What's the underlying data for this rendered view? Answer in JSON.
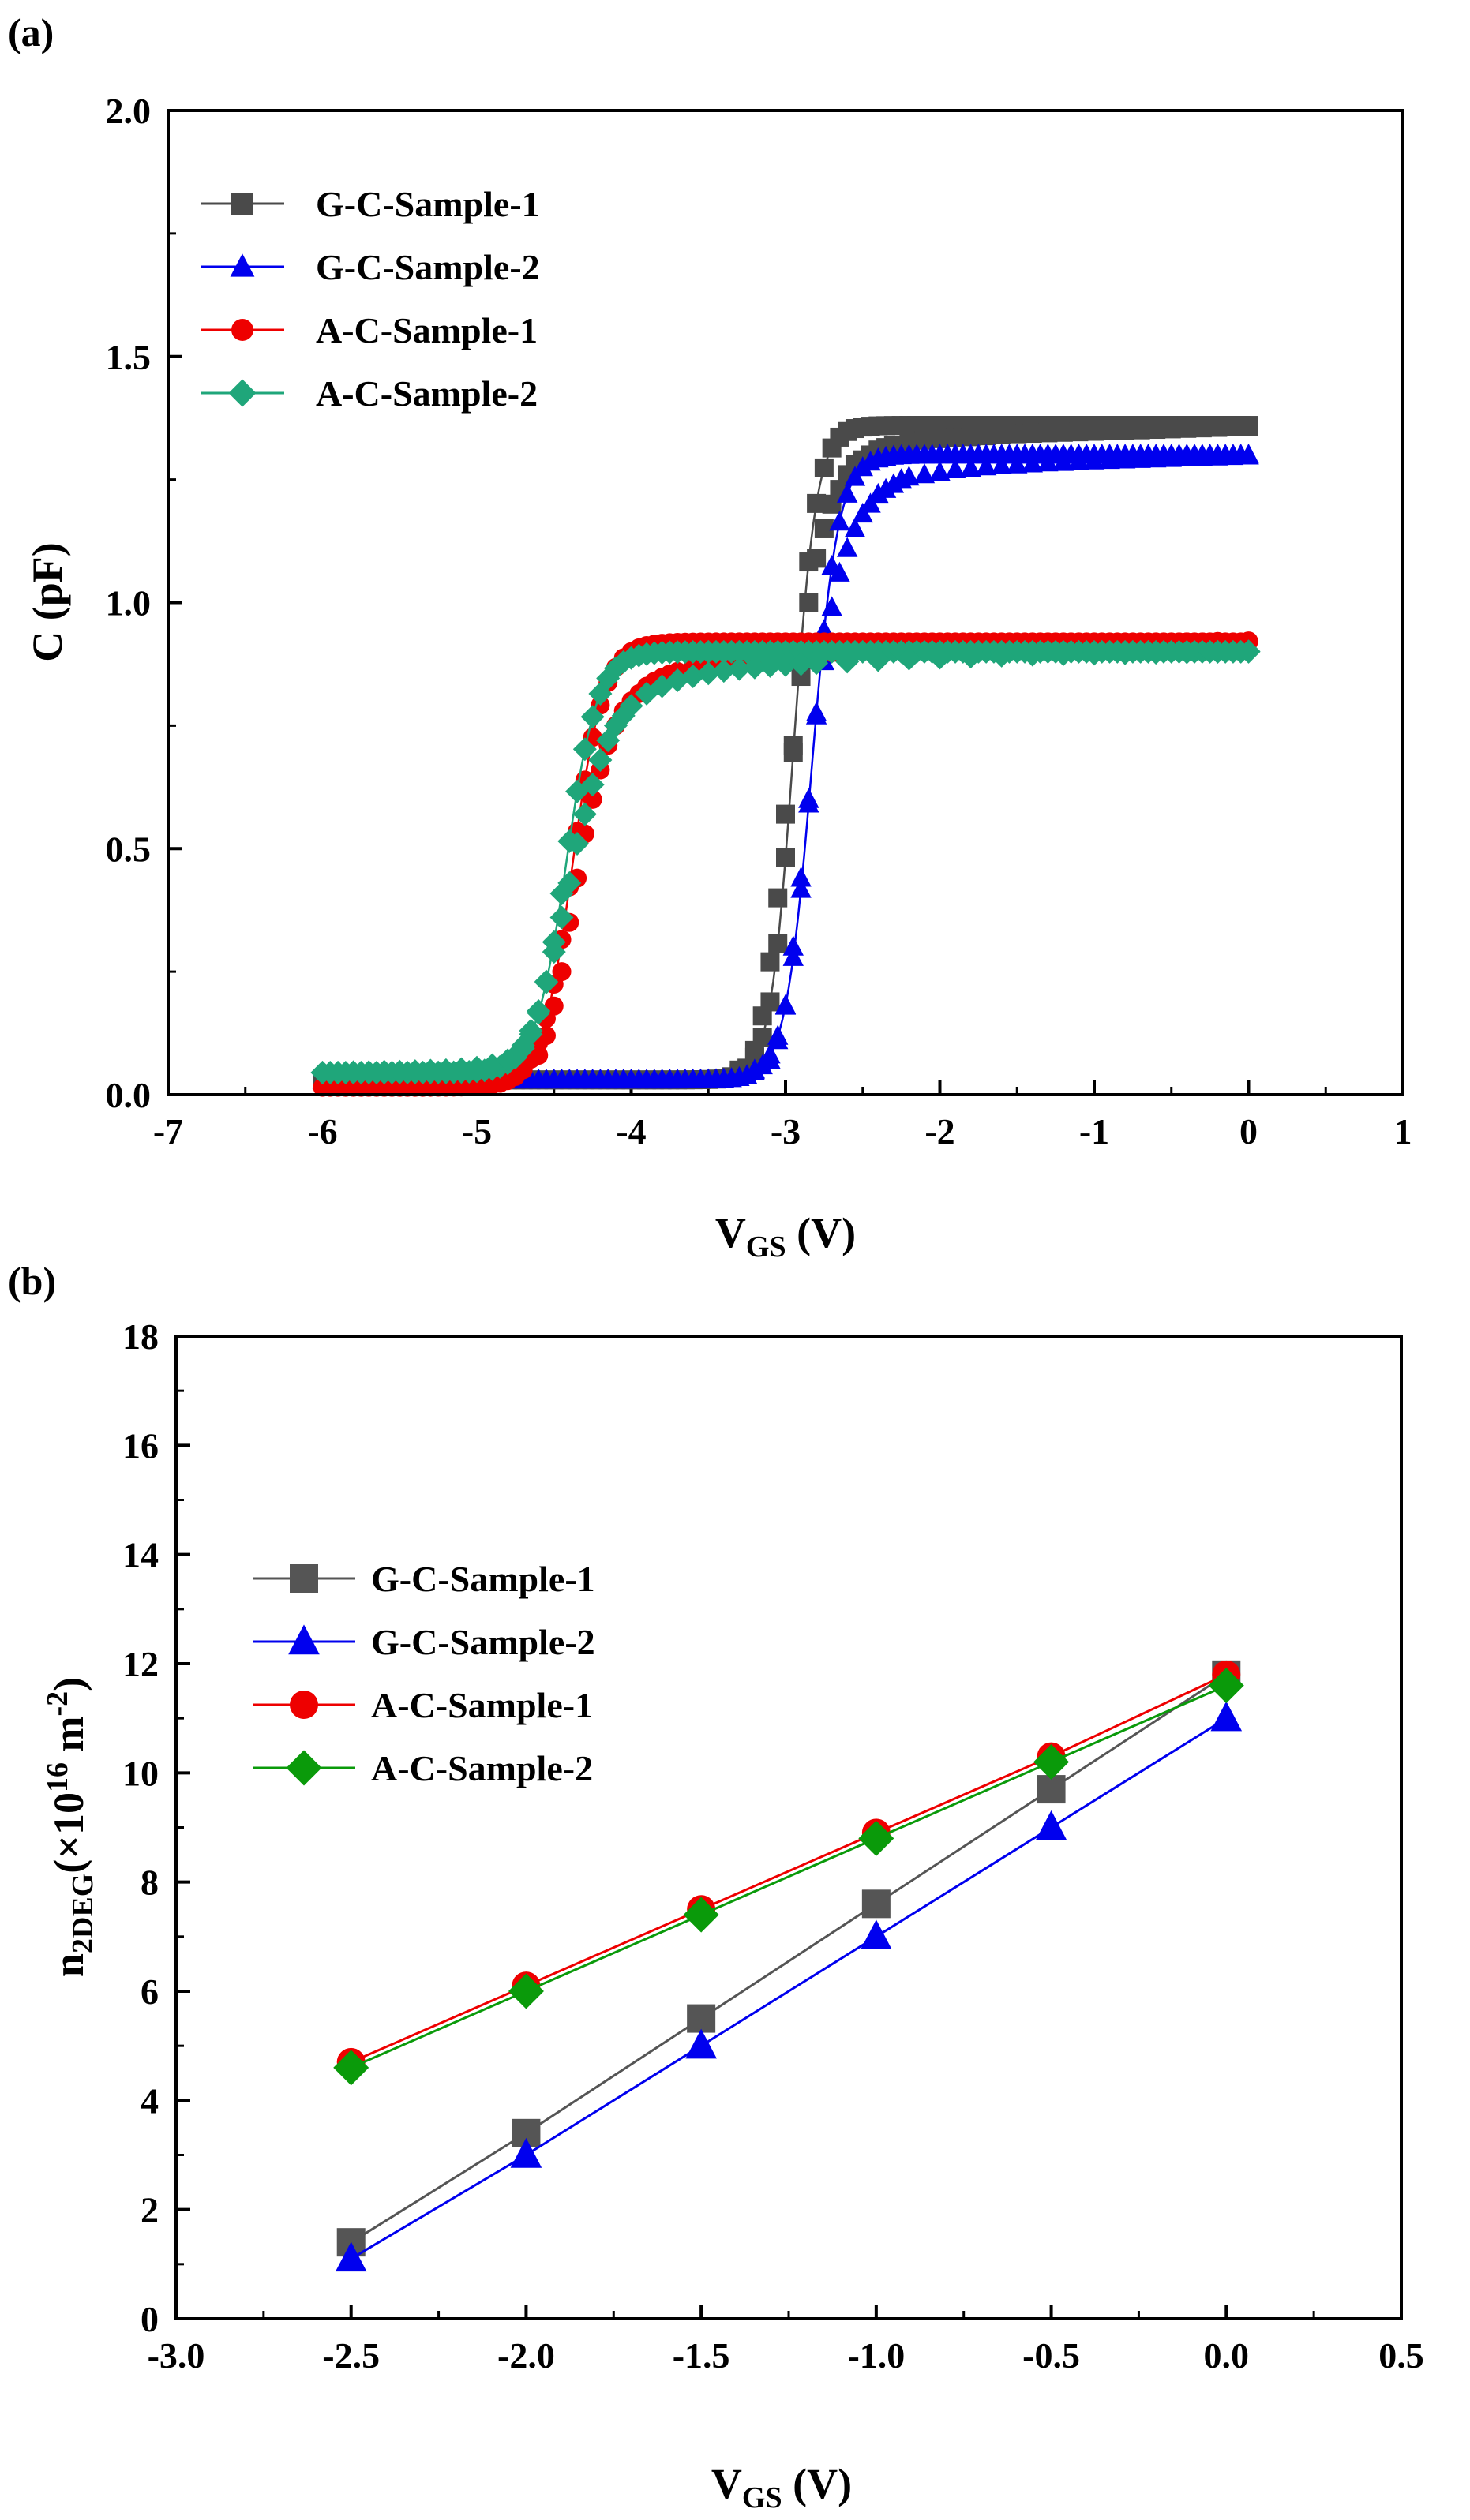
{
  "chart_data": [
    {
      "panel_label": "(a)",
      "type": "scatter",
      "x_label": "V",
      "x_label_sub": "GS",
      "x_label_unit": " (V)",
      "ylabel": "C (pF)",
      "xlim": [
        -7,
        1
      ],
      "ylim": [
        0,
        2.0
      ],
      "xticks": [
        -7,
        -6,
        -5,
        -4,
        -3,
        -2,
        -1,
        0,
        1
      ],
      "xtick_labels": [
        "-7",
        "-6",
        "-5",
        "-4",
        "-3",
        "-2",
        "-1",
        "0",
        "1"
      ],
      "yticks": [
        0,
        0.5,
        1.0,
        1.5,
        2.0
      ],
      "ytick_labels": [
        "0.0",
        "0.5",
        "1.0",
        "1.5",
        "2.0"
      ],
      "legend_position": "top-left",
      "series": [
        {
          "name": "G-C-Sample-1",
          "color": "#4a4a4a",
          "marker": "square",
          "curve": {
            "low": 0.03,
            "high": 1.36,
            "center": -2.95,
            "width": 0.075,
            "slope": 0.012,
            "from": -6,
            "to": 0
          },
          "points": [
            [
              -3.3,
              0.05
            ],
            [
              -3.2,
              0.09
            ],
            [
              -3.15,
              0.16
            ],
            [
              -3.1,
              0.27
            ],
            [
              -3.05,
              0.4
            ],
            [
              -3.0,
              0.57
            ],
            [
              -2.95,
              0.71
            ],
            [
              -2.9,
              0.85
            ],
            [
              -2.85,
              1.0
            ],
            [
              -2.8,
              1.09
            ],
            [
              -2.75,
              1.15
            ],
            [
              -2.7,
              1.2
            ],
            [
              -2.65,
              1.23
            ],
            [
              -2.6,
              1.26
            ],
            [
              -2.55,
              1.28
            ],
            [
              -2.5,
              1.29
            ],
            [
              -2.45,
              1.3
            ],
            [
              -2.4,
              1.31
            ],
            [
              -2.35,
              1.315
            ],
            [
              -2.3,
              1.32
            ],
            [
              -2.2,
              1.325
            ],
            [
              -2.1,
              1.33
            ],
            [
              -2.0,
              1.333
            ],
            [
              -1.9,
              1.335
            ],
            [
              -1.8,
              1.337
            ],
            [
              -1.7,
              1.339
            ],
            [
              -1.6,
              1.341
            ],
            [
              -1.5,
              1.343
            ],
            [
              -1.4,
              1.344
            ],
            [
              -1.3,
              1.345
            ],
            [
              -1.2,
              1.346
            ],
            [
              -1.1,
              1.347
            ],
            [
              -1.0,
              1.348
            ],
            [
              -0.9,
              1.349
            ],
            [
              -0.8,
              1.35
            ],
            [
              -0.7,
              1.351
            ],
            [
              -0.6,
              1.352
            ],
            [
              -0.5,
              1.353
            ],
            [
              -0.4,
              1.354
            ],
            [
              -0.3,
              1.355
            ],
            [
              -0.2,
              1.356
            ],
            [
              -0.1,
              1.357
            ],
            [
              0.0,
              1.358
            ]
          ]
        },
        {
          "name": "G-C-Sample-2",
          "color": "#0000ee",
          "marker": "triangle",
          "curve": {
            "low": 0.03,
            "high": 1.3,
            "center": -2.83,
            "width": 0.085,
            "slope": 0.016,
            "from": -6,
            "to": 0
          },
          "points": [
            [
              -3.2,
              0.05
            ],
            [
              -3.1,
              0.07
            ],
            [
              -3.05,
              0.11
            ],
            [
              -3.0,
              0.18
            ],
            [
              -2.95,
              0.3
            ],
            [
              -2.9,
              0.44
            ],
            [
              -2.85,
              0.6
            ],
            [
              -2.8,
              0.77
            ],
            [
              -2.75,
              0.88
            ],
            [
              -2.7,
              0.99
            ],
            [
              -2.65,
              1.06
            ],
            [
              -2.6,
              1.11
            ],
            [
              -2.55,
              1.15
            ],
            [
              -2.5,
              1.18
            ],
            [
              -2.45,
              1.2
            ],
            [
              -2.4,
              1.22
            ],
            [
              -2.35,
              1.23
            ],
            [
              -2.3,
              1.24
            ],
            [
              -2.25,
              1.25
            ],
            [
              -2.2,
              1.255
            ],
            [
              -2.1,
              1.26
            ],
            [
              -2.0,
              1.265
            ],
            [
              -1.9,
              1.27
            ],
            [
              -1.8,
              1.273
            ],
            [
              -1.7,
              1.276
            ],
            [
              -1.6,
              1.278
            ],
            [
              -1.5,
              1.28
            ],
            [
              -1.4,
              1.282
            ],
            [
              -1.3,
              1.284
            ],
            [
              -1.2,
              1.285
            ],
            [
              -1.1,
              1.287
            ],
            [
              -1.0,
              1.288
            ],
            [
              -0.9,
              1.289
            ],
            [
              -0.8,
              1.29
            ],
            [
              -0.7,
              1.291
            ],
            [
              -0.6,
              1.292
            ],
            [
              -0.5,
              1.293
            ],
            [
              -0.4,
              1.294
            ],
            [
              -0.3,
              1.295
            ],
            [
              -0.2,
              1.296
            ],
            [
              -0.1,
              1.297
            ],
            [
              0.0,
              1.298
            ]
          ]
        },
        {
          "name": "A-C-Sample-1",
          "color": "#ee0000",
          "marker": "circle",
          "curve": {
            "low": 0.015,
            "high": 0.92,
            "center": -4.38,
            "width": 0.1,
            "slope": 0.012,
            "from": -6,
            "to": 0
          },
          "points": [
            [
              -4.6,
              0.08
            ],
            [
              -4.55,
              0.12
            ],
            [
              -4.5,
              0.18
            ],
            [
              -4.45,
              0.25
            ],
            [
              -4.4,
              0.35
            ],
            [
              -4.35,
              0.44
            ],
            [
              -4.3,
              0.53
            ],
            [
              -4.25,
              0.6
            ],
            [
              -4.2,
              0.66
            ],
            [
              -4.15,
              0.71
            ],
            [
              -4.1,
              0.75
            ],
            [
              -4.05,
              0.78
            ],
            [
              -4.0,
              0.8
            ],
            [
              -3.95,
              0.815
            ],
            [
              -3.9,
              0.83
            ],
            [
              -3.85,
              0.84
            ],
            [
              -3.8,
              0.848
            ],
            [
              -3.75,
              0.855
            ],
            [
              -3.7,
              0.86
            ],
            [
              -3.6,
              0.868
            ],
            [
              -3.5,
              0.874
            ],
            [
              -3.4,
              0.879
            ],
            [
              -3.3,
              0.883
            ],
            [
              -3.2,
              0.887
            ],
            [
              -3.1,
              0.89
            ],
            [
              -3.0,
              0.892
            ],
            [
              -2.9,
              0.894
            ],
            [
              -2.8,
              0.896
            ],
            [
              -2.7,
              0.898
            ],
            [
              -2.6,
              0.9
            ],
            [
              -2.4,
              0.903
            ],
            [
              -2.2,
              0.906
            ],
            [
              -2.0,
              0.909
            ],
            [
              -1.8,
              0.911
            ],
            [
              -1.6,
              0.913
            ],
            [
              -1.4,
              0.914
            ],
            [
              -1.2,
              0.916
            ],
            [
              -1.0,
              0.917
            ],
            [
              -0.8,
              0.918
            ],
            [
              -0.6,
              0.919
            ],
            [
              -0.4,
              0.92
            ],
            [
              -0.2,
              0.921
            ],
            [
              0.0,
              0.922
            ]
          ]
        },
        {
          "name": "A-C-Sample-2",
          "color": "#1fa67a",
          "marker": "diamond",
          "curve": {
            "low": 0.045,
            "high": 0.9,
            "center": -4.42,
            "width": 0.1,
            "slope": 0.012,
            "from": -6,
            "to": 0
          },
          "points": [
            [
              -6.0,
              0.045
            ],
            [
              -5.9,
              0.045
            ],
            [
              -5.8,
              0.046
            ],
            [
              -5.7,
              0.046
            ],
            [
              -5.6,
              0.047
            ],
            [
              -5.5,
              0.047
            ],
            [
              -5.4,
              0.048
            ],
            [
              -5.3,
              0.049
            ],
            [
              -5.2,
              0.05
            ],
            [
              -5.1,
              0.052
            ],
            [
              -5.0,
              0.055
            ],
            [
              -4.9,
              0.06
            ],
            [
              -4.8,
              0.07
            ],
            [
              -4.75,
              0.08
            ],
            [
              -4.7,
              0.1
            ],
            [
              -4.65,
              0.13
            ],
            [
              -4.6,
              0.17
            ],
            [
              -4.55,
              0.23
            ],
            [
              -4.5,
              0.29
            ],
            [
              -4.45,
              0.36
            ],
            [
              -4.4,
              0.43
            ],
            [
              -4.35,
              0.51
            ],
            [
              -4.3,
              0.57
            ],
            [
              -4.25,
              0.63
            ],
            [
              -4.2,
              0.68
            ],
            [
              -4.15,
              0.72
            ],
            [
              -4.1,
              0.75
            ],
            [
              -4.05,
              0.77
            ],
            [
              -4.0,
              0.79
            ],
            [
              -3.9,
              0.815
            ],
            [
              -3.8,
              0.83
            ],
            [
              -3.7,
              0.842
            ],
            [
              -3.6,
              0.85
            ],
            [
              -3.5,
              0.856
            ],
            [
              -3.4,
              0.861
            ],
            [
              -3.3,
              0.865
            ],
            [
              -3.2,
              0.868
            ],
            [
              -3.1,
              0.871
            ],
            [
              -3.0,
              0.873
            ],
            [
              -2.9,
              0.875
            ],
            [
              -2.8,
              0.877
            ],
            [
              -2.6,
              0.88
            ],
            [
              -2.4,
              0.883
            ],
            [
              -2.2,
              0.886
            ],
            [
              -2.0,
              0.888
            ],
            [
              -1.8,
              0.89
            ],
            [
              -1.6,
              0.892
            ],
            [
              -1.4,
              0.894
            ],
            [
              -1.2,
              0.895
            ],
            [
              -1.0,
              0.896
            ],
            [
              -0.8,
              0.897
            ],
            [
              -0.6,
              0.898
            ],
            [
              -0.4,
              0.899
            ],
            [
              -0.2,
              0.9
            ],
            [
              0.0,
              0.901
            ]
          ]
        }
      ]
    },
    {
      "panel_label": "(b)",
      "type": "line",
      "x_label": "V",
      "x_label_sub": "GS",
      "x_label_unit": " (V)",
      "y_label": "n",
      "y_label_sub": "2DEG",
      "y_label_mid": "(×10",
      "y_label_sup": "16",
      "y_label_unit": " m",
      "y_label_sup2": "-2",
      "y_label_end": ")",
      "xlim": [
        -3.0,
        0.5
      ],
      "ylim": [
        0,
        18
      ],
      "xticks": [
        -3.0,
        -2.5,
        -2.0,
        -1.5,
        -1.0,
        -0.5,
        0.0,
        0.5
      ],
      "xtick_labels": [
        "-3.0",
        "-2.5",
        "-2.0",
        "-1.5",
        "-1.0",
        "-0.5",
        "0.0",
        "0.5"
      ],
      "yticks": [
        0,
        2,
        4,
        6,
        8,
        10,
        12,
        14,
        16,
        18
      ],
      "ytick_labels": [
        "0",
        "2",
        "4",
        "6",
        "8",
        "10",
        "12",
        "14",
        "16",
        "18"
      ],
      "legend_position": "upper-left",
      "x": [
        -2.5,
        -2.0,
        -1.5,
        -1.0,
        -0.5,
        0.0
      ],
      "series": [
        {
          "name": "G-C-Sample-1",
          "color": "#555555",
          "marker": "square",
          "values": [
            1.4,
            3.4,
            5.5,
            7.6,
            9.7,
            11.8
          ]
        },
        {
          "name": "G-C-Sample-2",
          "color": "#0000ee",
          "marker": "triangle",
          "values": [
            1.1,
            3.0,
            5.0,
            7.0,
            9.0,
            11.0
          ]
        },
        {
          "name": "A-C-Sample-1",
          "color": "#ee0000",
          "marker": "circle",
          "values": [
            4.7,
            6.1,
            7.5,
            8.9,
            10.3,
            11.8
          ]
        },
        {
          "name": "A-C-Sample-2",
          "color": "#0a9a0a",
          "marker": "diamond",
          "values": [
            4.6,
            6.0,
            7.4,
            8.8,
            10.2,
            11.6
          ]
        }
      ]
    }
  ]
}
